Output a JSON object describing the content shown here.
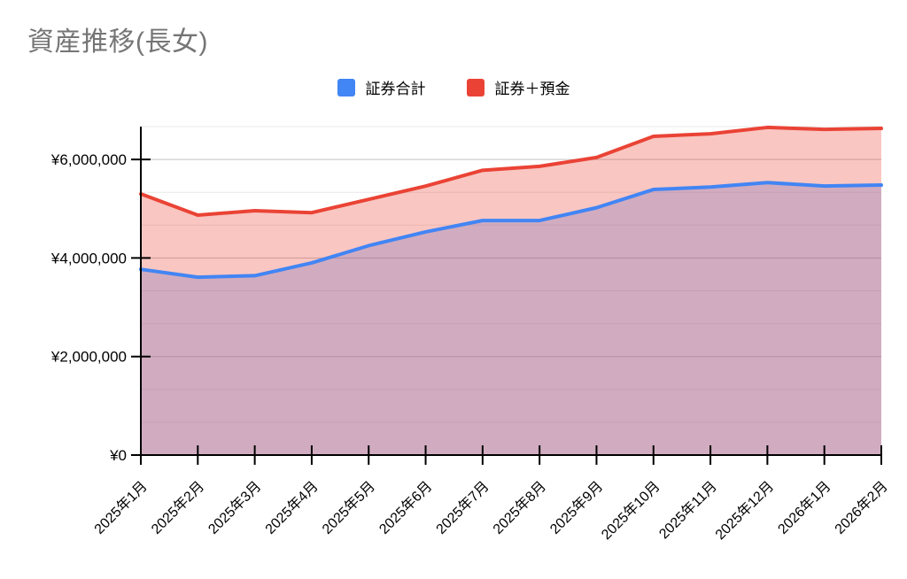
{
  "title": "資産推移(長女)",
  "legend": {
    "items": [
      {
        "label": "証券合計",
        "color": "#4285F4"
      },
      {
        "label": "証券＋預金",
        "color": "#EA4335"
      }
    ]
  },
  "chart_data": {
    "type": "area",
    "title": "資産推移(長女)",
    "categories": [
      "2025年1月",
      "2025年2月",
      "2025年3月",
      "2025年4月",
      "2025年5月",
      "2025年6月",
      "2025年7月",
      "2025年8月",
      "2025年9月",
      "2025年10月",
      "2025年11月",
      "2025年12月",
      "2026年1月",
      "2026年2月"
    ],
    "series": [
      {
        "name": "証券合計",
        "color": "#4285F4",
        "values": [
          3770000,
          3610000,
          3640000,
          3900000,
          4250000,
          4530000,
          4760000,
          4760000,
          5020000,
          5390000,
          5440000,
          5530000,
          5460000,
          5480000
        ]
      },
      {
        "name": "証券＋預金",
        "color": "#EA4335",
        "values": [
          5300000,
          4870000,
          4960000,
          4920000,
          5190000,
          5460000,
          5780000,
          5860000,
          6040000,
          6470000,
          6520000,
          6650000,
          6610000,
          6630000
        ]
      }
    ],
    "xlabel": "",
    "ylabel": "",
    "ylim": [
      0,
      6666667
    ],
    "y_major_step": 2000000,
    "y_minor_divisions": 3,
    "y_tick_labels": [
      "¥0",
      "¥2,000,000",
      "¥4,000,000",
      "¥6,000,000"
    ],
    "currency_prefix": "¥",
    "grid": true,
    "legend_position": "top",
    "x_label_rotation": -45,
    "area_opacity": 0.3,
    "line_width": 4,
    "axis_color": "#000000",
    "grid_major_color": "#c2c2c2",
    "grid_minor_color": "#e9e9e9",
    "title_color": "#757575",
    "background": "#ffffff"
  }
}
